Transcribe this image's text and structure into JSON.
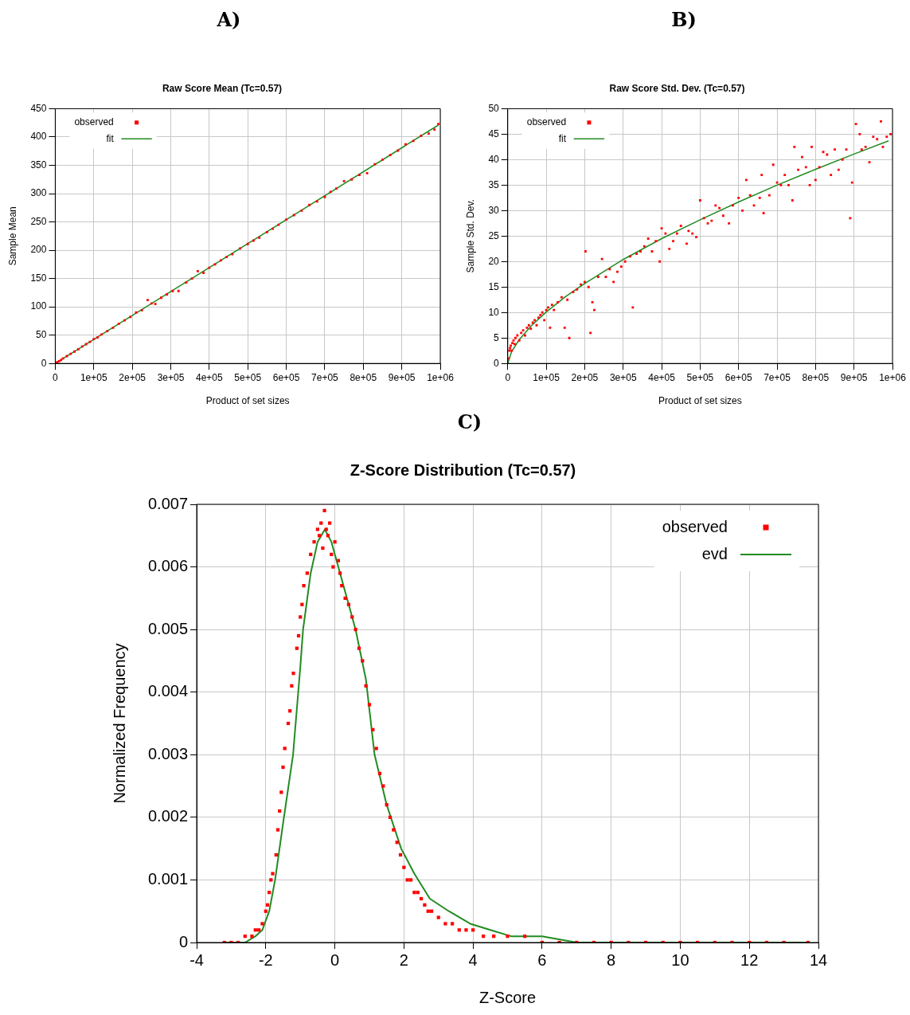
{
  "chart_data": [
    {
      "type": "scatter",
      "annotations": [
        "A)"
      ],
      "title": "Raw Score Mean (Tc=0.57)",
      "xlabel": "Product of set sizes",
      "ylabel": "Sample Mean",
      "xlim": [
        0,
        1000000
      ],
      "ylim": [
        0,
        450
      ],
      "xticks": [
        0,
        {
          "value": 100000,
          "label": "1e+05"
        },
        {
          "value": 200000,
          "label": "2e+05"
        },
        {
          "value": 300000,
          "label": "3e+05"
        },
        {
          "value": 400000,
          "label": "4e+05"
        },
        {
          "value": 500000,
          "label": "5e+05"
        },
        {
          "value": 600000,
          "label": "6e+05"
        },
        {
          "value": 700000,
          "label": "7e+05"
        },
        {
          "value": 800000,
          "label": "8e+05"
        },
        {
          "value": 900000,
          "label": "9e+05"
        },
        {
          "value": 1000000,
          "label": "1e+06"
        }
      ],
      "yticks": [
        0,
        50,
        100,
        150,
        200,
        250,
        300,
        350,
        400,
        450
      ],
      "grid": true,
      "legend": "top left",
      "series": [
        {
          "name": "observed",
          "type": "scatter",
          "marker": "square",
          "color": "#ff0000",
          "x": [
            2000,
            5000,
            10000,
            15000,
            20000,
            30000,
            40000,
            50000,
            60000,
            70000,
            80000,
            90000,
            100000,
            110000,
            120000,
            135000,
            150000,
            165000,
            180000,
            195000,
            210000,
            225000,
            240000,
            250000,
            260000,
            275000,
            290000,
            305000,
            320000,
            340000,
            355000,
            370000,
            385000,
            400000,
            415000,
            430000,
            445000,
            460000,
            480000,
            500000,
            515000,
            530000,
            550000,
            565000,
            580000,
            600000,
            620000,
            640000,
            660000,
            680000,
            700000,
            715000,
            730000,
            750000,
            770000,
            790000,
            810000,
            830000,
            850000,
            870000,
            890000,
            910000,
            930000,
            950000,
            970000,
            985000,
            995000
          ],
          "values": [
            1,
            2,
            4,
            6,
            9,
            13,
            17,
            21,
            25,
            30,
            34,
            38,
            43,
            46,
            51,
            57,
            63,
            70,
            76,
            82,
            90,
            94,
            112,
            106,
            105,
            116,
            122,
            128,
            128,
            143,
            150,
            163,
            160,
            169,
            175,
            182,
            188,
            193,
            203,
            211,
            217,
            222,
            232,
            238,
            245,
            254,
            262,
            270,
            280,
            286,
            294,
            303,
            309,
            322,
            325,
            333,
            336,
            352,
            360,
            368,
            376,
            387,
            393,
            402,
            406,
            413,
            423
          ]
        },
        {
          "name": "fit",
          "type": "line",
          "marker": "none",
          "color": "#228b22",
          "x": [
            0,
            995000
          ],
          "values": [
            0,
            421
          ]
        }
      ]
    },
    {
      "type": "scatter",
      "annotations": [
        "B)"
      ],
      "title": "Raw Score Std. Dev. (Tc=0.57)",
      "xlabel": "Product of set sizes",
      "ylabel": "Sample Std. Dev.",
      "xlim": [
        0,
        1000000
      ],
      "ylim": [
        0,
        50
      ],
      "xticks": [
        0,
        {
          "value": 100000,
          "label": "1e+05"
        },
        {
          "value": 200000,
          "label": "2e+05"
        },
        {
          "value": 300000,
          "label": "3e+05"
        },
        {
          "value": 400000,
          "label": "4e+05"
        },
        {
          "value": 500000,
          "label": "5e+05"
        },
        {
          "value": 600000,
          "label": "6e+05"
        },
        {
          "value": 700000,
          "label": "7e+05"
        },
        {
          "value": 800000,
          "label": "8e+05"
        },
        {
          "value": 900000,
          "label": "9e+05"
        },
        {
          "value": 1000000,
          "label": "1e+06"
        }
      ],
      "yticks": [
        0,
        5,
        10,
        15,
        20,
        25,
        30,
        35,
        40,
        45,
        50
      ],
      "grid": true,
      "legend": "top left",
      "series": [
        {
          "name": "observed",
          "type": "scatter",
          "marker": "square",
          "color": "#ff0000",
          "x": [
            2000,
            4000,
            6000,
            8000,
            10000,
            12000,
            15000,
            18000,
            20000,
            25000,
            30000,
            35000,
            40000,
            45000,
            50000,
            55000,
            60000,
            65000,
            70000,
            75000,
            80000,
            85000,
            90000,
            95000,
            100000,
            105000,
            110000,
            115000,
            120000,
            130000,
            140000,
            148000,
            155000,
            160000,
            170000,
            180000,
            190000,
            200000,
            202000,
            210000,
            215000,
            220000,
            225000,
            235000,
            245000,
            255000,
            265000,
            275000,
            285000,
            295000,
            305000,
            318000,
            325000,
            335000,
            345000,
            355000,
            365000,
            375000,
            385000,
            395000,
            400000,
            410000,
            420000,
            430000,
            440000,
            450000,
            465000,
            470000,
            480000,
            490000,
            500000,
            510000,
            520000,
            530000,
            540000,
            550000,
            560000,
            575000,
            585000,
            600000,
            610000,
            620000,
            630000,
            640000,
            655000,
            660000,
            665000,
            680000,
            690000,
            700000,
            710000,
            720000,
            730000,
            740000,
            745000,
            755000,
            765000,
            775000,
            785000,
            790000,
            800000,
            810000,
            820000,
            830000,
            840000,
            850000,
            860000,
            870000,
            880000,
            890000,
            895000,
            905000,
            915000,
            920000,
            930000,
            940000,
            950000,
            960000,
            970000,
            975000,
            985000,
            995000
          ],
          "values": [
            1,
            2.5,
            3,
            3.5,
            2.5,
            4,
            4.5,
            3.8,
            5,
            5.5,
            4.5,
            6,
            6.5,
            5.5,
            7,
            7.5,
            6.8,
            8,
            8.5,
            7.5,
            9,
            9.5,
            10,
            8.5,
            10.5,
            11,
            7,
            11.5,
            10.5,
            12,
            13,
            7,
            12.5,
            5,
            14,
            14.5,
            15.5,
            16,
            22,
            15,
            6,
            12,
            10.5,
            17,
            20.5,
            17,
            18.5,
            16,
            18,
            19,
            20,
            21,
            11,
            21.5,
            22,
            23,
            24.5,
            22,
            24,
            20,
            26.5,
            25.5,
            22.5,
            24,
            25.5,
            27,
            23.5,
            26,
            25.5,
            24.8,
            32,
            28.5,
            27.5,
            28,
            31,
            30.5,
            29,
            27.5,
            31,
            32.5,
            30,
            36,
            33,
            31,
            32.5,
            37,
            29.5,
            33,
            39,
            35.5,
            35,
            37,
            35,
            32,
            42.5,
            38,
            40.5,
            38.5,
            35,
            42.5,
            36,
            38.5,
            41.5,
            41,
            37,
            42,
            38,
            40,
            42,
            28.5,
            35.5,
            47,
            45,
            42,
            42.5,
            39.5,
            44.5,
            44,
            47.5,
            42.5,
            44.5,
            45
          ]
        },
        {
          "name": "fit",
          "type": "line",
          "marker": "none",
          "color": "#228b22",
          "x": [
            0,
            10000,
            30000,
            60000,
            100000,
            150000,
            200000,
            300000,
            400000,
            500000,
            600000,
            700000,
            800000,
            900000,
            990000
          ],
          "values": [
            0,
            2.3,
            4.7,
            7.3,
            10.1,
            13.1,
            15.7,
            20.4,
            24.5,
            28.2,
            31.7,
            35.0,
            38.1,
            41.1,
            43.7
          ]
        }
      ]
    },
    {
      "type": "scatter",
      "annotations": [
        "C)"
      ],
      "title": "Z-Score Distribution (Tc=0.57)",
      "xlabel": "Z-Score",
      "ylabel": "Normalized Frequency",
      "xlim": [
        -4,
        14
      ],
      "ylim": [
        0,
        0.007
      ],
      "xticks": [
        -4,
        -2,
        0,
        2,
        4,
        6,
        8,
        10,
        12,
        14
      ],
      "yticks": [
        0,
        0.001,
        0.002,
        0.003,
        0.004,
        0.005,
        0.006,
        0.007
      ],
      "grid": true,
      "legend": "top right",
      "series": [
        {
          "name": "observed",
          "type": "scatter",
          "marker": "square",
          "color": "#ff0000",
          "x": [
            -3.2,
            -3.0,
            -2.8,
            -2.6,
            -2.4,
            -2.3,
            -2.2,
            -2.1,
            -2.0,
            -1.95,
            -1.9,
            -1.85,
            -1.8,
            -1.7,
            -1.65,
            -1.6,
            -1.55,
            -1.5,
            -1.45,
            -1.35,
            -1.3,
            -1.25,
            -1.2,
            -1.1,
            -1.05,
            -1.0,
            -0.95,
            -0.9,
            -0.8,
            -0.7,
            -0.6,
            -0.5,
            -0.45,
            -0.4,
            -0.35,
            -0.3,
            -0.25,
            -0.2,
            -0.15,
            -0.1,
            -0.05,
            0,
            0.1,
            0.15,
            0.2,
            0.3,
            0.4,
            0.5,
            0.6,
            0.7,
            0.8,
            0.9,
            1.0,
            1.1,
            1.2,
            1.3,
            1.4,
            1.5,
            1.6,
            1.7,
            1.8,
            1.9,
            2.0,
            2.1,
            2.2,
            2.3,
            2.4,
            2.5,
            2.6,
            2.7,
            2.8,
            3.0,
            3.2,
            3.4,
            3.6,
            3.8,
            4.0,
            4.3,
            4.6,
            5.0,
            5.5,
            6.0,
            6.5,
            7,
            7.5,
            8,
            8.5,
            9,
            9.5,
            10,
            10.5,
            11,
            11.5,
            12,
            12.5,
            13,
            13.7
          ],
          "values": [
            0,
            0,
            0,
            0.0001,
            0.0001,
            0.0002,
            0.0002,
            0.0003,
            0.0005,
            0.0006,
            0.0008,
            0.001,
            0.0011,
            0.0014,
            0.0018,
            0.0021,
            0.0024,
            0.0028,
            0.0031,
            0.0035,
            0.0037,
            0.0041,
            0.0043,
            0.0047,
            0.0049,
            0.0052,
            0.0054,
            0.0057,
            0.0059,
            0.0062,
            0.0064,
            0.0066,
            0.0065,
            0.0067,
            0.0063,
            0.0069,
            0.0066,
            0.0065,
            0.0067,
            0.0062,
            0.006,
            0.0064,
            0.0061,
            0.0059,
            0.0057,
            0.0055,
            0.0054,
            0.0052,
            0.005,
            0.0047,
            0.0045,
            0.0041,
            0.0038,
            0.0034,
            0.0031,
            0.0027,
            0.0025,
            0.0022,
            0.002,
            0.0018,
            0.0016,
            0.0014,
            0.0012,
            0.001,
            0.001,
            0.0008,
            0.0008,
            0.0007,
            0.0006,
            0.0005,
            0.0005,
            0.0004,
            0.0003,
            0.0003,
            0.0002,
            0.0002,
            0.0002,
            0.0001,
            0.0001,
            0.0001,
            0.0001,
            0,
            0,
            0,
            0,
            0,
            0,
            0,
            0,
            0,
            0,
            0,
            0,
            0,
            0,
            0,
            0
          ]
        },
        {
          "name": "evd",
          "type": "line",
          "marker": "none",
          "color": "#228b22",
          "x": [
            -3.2,
            -2.6,
            -2.3,
            -2.1,
            -1.9,
            -1.73,
            -1.5,
            -1.21,
            -1.0,
            -0.92,
            -0.7,
            -0.5,
            -0.29,
            -0.1,
            0.1,
            0.3,
            0.6,
            0.9,
            1.15,
            1.5,
            1.92,
            2.3,
            2.75,
            3.3,
            3.92,
            4.5,
            5.1,
            6,
            7,
            9,
            13.7
          ],
          "values": [
            0,
            0,
            0.0001,
            0.0002,
            0.0005,
            0.001,
            0.0019,
            0.003,
            0.0044,
            0.005,
            0.0059,
            0.0064,
            0.0066,
            0.0064,
            0.006,
            0.0056,
            0.005,
            0.0042,
            0.003,
            0.0022,
            0.0015,
            0.0011,
            0.0007,
            0.0005,
            0.0003,
            0.0002,
            0.0001,
            0.0001,
            0,
            0,
            0
          ]
        }
      ]
    }
  ]
}
